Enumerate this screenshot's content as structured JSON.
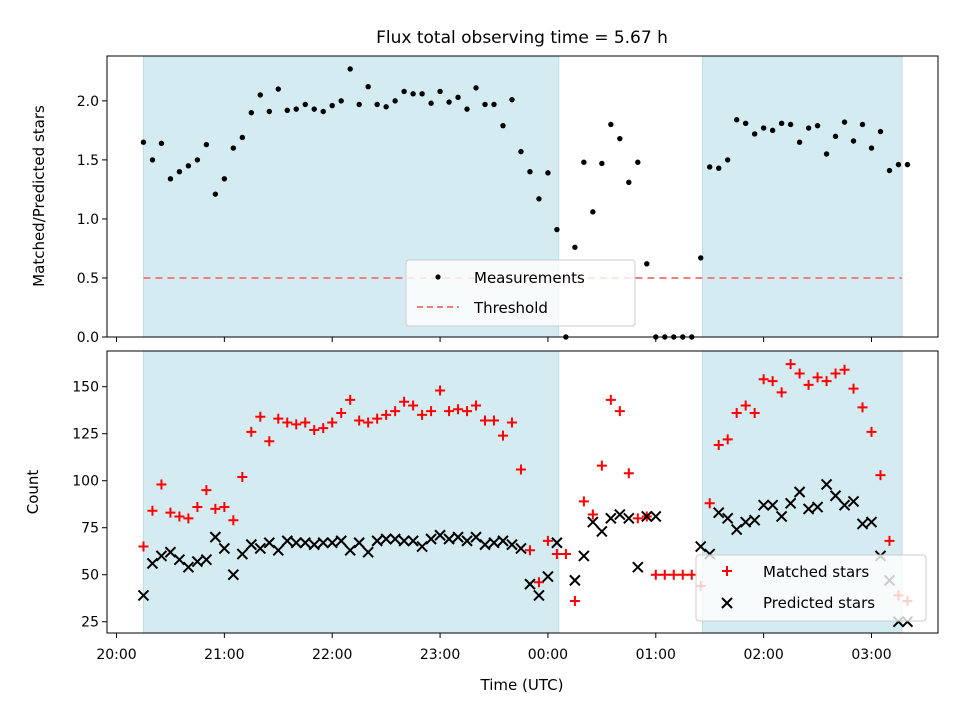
{
  "chart_data": [
    {
      "type": "scatter",
      "title": "Flux total observing time = 5.67 h",
      "xlabel": "",
      "ylabel": "Matched/Predicted stars",
      "ylim": [
        0,
        2.38
      ],
      "yticks": [
        "0.0",
        "0.5",
        "1.0",
        "1.5",
        "2.0"
      ],
      "grid": false,
      "legend": "lower-center",
      "shaded_intervals": [
        [
          "20:15",
          "00:06"
        ],
        [
          "01:26",
          "03:17"
        ]
      ],
      "series": [
        {
          "name": "Measurements",
          "kind": "points",
          "color": "#000000",
          "x": [
            "20:15",
            "20:20",
            "20:25",
            "20:30",
            "20:35",
            "20:40",
            "20:45",
            "20:50",
            "20:55",
            "21:00",
            "21:05",
            "21:10",
            "21:15",
            "21:20",
            "21:25",
            "21:30",
            "21:35",
            "21:40",
            "21:45",
            "21:50",
            "21:55",
            "22:00",
            "22:05",
            "22:10",
            "22:15",
            "22:20",
            "22:25",
            "22:30",
            "22:35",
            "22:40",
            "22:45",
            "22:50",
            "22:55",
            "23:00",
            "23:05",
            "23:10",
            "23:15",
            "23:20",
            "23:25",
            "23:30",
            "23:35",
            "23:40",
            "23:45",
            "23:50",
            "23:55",
            "00:00",
            "00:05",
            "00:10",
            "00:15",
            "00:20",
            "00:25",
            "00:30",
            "00:35",
            "00:40",
            "00:45",
            "00:50",
            "00:55",
            "01:00",
            "01:05",
            "01:10",
            "01:15",
            "01:20",
            "01:25",
            "01:30",
            "01:35",
            "01:40",
            "01:45",
            "01:50",
            "01:55",
            "02:00",
            "02:05",
            "02:10",
            "02:15",
            "02:20",
            "02:25",
            "02:30",
            "02:35",
            "02:40",
            "02:45",
            "02:50",
            "02:55",
            "03:00",
            "03:05",
            "03:10",
            "03:15",
            "03:20"
          ],
          "y": [
            1.65,
            1.5,
            1.64,
            1.34,
            1.4,
            1.45,
            1.5,
            1.63,
            1.21,
            1.34,
            1.6,
            1.69,
            1.9,
            2.05,
            1.91,
            2.1,
            1.92,
            1.93,
            1.97,
            1.93,
            1.91,
            1.96,
            2.0,
            2.27,
            1.97,
            2.12,
            1.97,
            1.95,
            2.0,
            2.08,
            2.06,
            2.06,
            1.98,
            2.08,
            1.99,
            2.03,
            1.93,
            2.11,
            1.97,
            1.97,
            1.79,
            2.01,
            1.57,
            1.4,
            1.17,
            1.39,
            0.91,
            0.0,
            0.76,
            1.48,
            1.06,
            1.47,
            1.8,
            1.68,
            1.31,
            1.48,
            0.62,
            0.0,
            0.0,
            0.0,
            0.0,
            0.0,
            0.67,
            1.44,
            1.43,
            1.5,
            1.84,
            1.81,
            1.72,
            1.77,
            1.75,
            1.81,
            1.8,
            1.65,
            1.77,
            1.79,
            1.55,
            1.7,
            1.82,
            1.66,
            1.8,
            1.6,
            1.74,
            1.41,
            1.46,
            1.46
          ]
        },
        {
          "name": "Threshold",
          "kind": "dashed-line",
          "color": "#f08080",
          "x": [
            "20:15",
            "03:17"
          ],
          "y": [
            0.5,
            0.5
          ]
        }
      ]
    },
    {
      "type": "scatter",
      "title": "",
      "xlabel": "Time (UTC)",
      "ylabel": "Count",
      "ylim": [
        19,
        169
      ],
      "yticks": [
        "25",
        "50",
        "75",
        "100",
        "125",
        "150"
      ],
      "xticks": [
        "20:00",
        "21:00",
        "22:00",
        "23:00",
        "00:00",
        "01:00",
        "02:00",
        "03:00"
      ],
      "grid": false,
      "legend": "lower-right",
      "shaded_intervals": [
        [
          "20:15",
          "00:06"
        ],
        [
          "01:26",
          "03:17"
        ]
      ],
      "series": [
        {
          "name": "Matched stars",
          "kind": "plus",
          "color": "#ff0000",
          "x": [
            "20:15",
            "20:20",
            "20:25",
            "20:30",
            "20:35",
            "20:40",
            "20:45",
            "20:50",
            "20:55",
            "21:00",
            "21:05",
            "21:10",
            "21:15",
            "21:20",
            "21:25",
            "21:30",
            "21:35",
            "21:40",
            "21:45",
            "21:50",
            "21:55",
            "22:00",
            "22:05",
            "22:10",
            "22:15",
            "22:20",
            "22:25",
            "22:30",
            "22:35",
            "22:40",
            "22:45",
            "22:50",
            "22:55",
            "23:00",
            "23:05",
            "23:10",
            "23:15",
            "23:20",
            "23:25",
            "23:30",
            "23:35",
            "23:40",
            "23:45",
            "23:50",
            "23:55",
            "00:00",
            "00:05",
            "00:10",
            "00:15",
            "00:20",
            "00:25",
            "00:30",
            "00:35",
            "00:40",
            "00:45",
            "00:50",
            "00:55",
            "01:00",
            "01:05",
            "01:10",
            "01:15",
            "01:20",
            "01:25",
            "01:30",
            "01:35",
            "01:40",
            "01:45",
            "01:50",
            "01:55",
            "02:00",
            "02:05",
            "02:10",
            "02:15",
            "02:20",
            "02:25",
            "02:30",
            "02:35",
            "02:40",
            "02:45",
            "02:50",
            "02:55",
            "03:00",
            "03:05",
            "03:10",
            "03:15",
            "03:20"
          ],
          "y": [
            65,
            84,
            98,
            83,
            81,
            80,
            86,
            95,
            85,
            86,
            79,
            102,
            126,
            134,
            121,
            133,
            131,
            130,
            131,
            127,
            128,
            131,
            136,
            143,
            132,
            131,
            133,
            135,
            137,
            142,
            140,
            135,
            137,
            148,
            137,
            138,
            137,
            140,
            132,
            132,
            124,
            131,
            106,
            63,
            46,
            68,
            61,
            61,
            36,
            89,
            82,
            108,
            143,
            137,
            104,
            80,
            81,
            50,
            50,
            50,
            50,
            50,
            44,
            88,
            119,
            122,
            136,
            140,
            136,
            154,
            153,
            147,
            162,
            157,
            151,
            155,
            153,
            157,
            159,
            149,
            139,
            126,
            103,
            68,
            39,
            36
          ]
        },
        {
          "name": "Predicted stars",
          "kind": "x",
          "color": "#000000",
          "x": [
            "20:15",
            "20:20",
            "20:25",
            "20:30",
            "20:35",
            "20:40",
            "20:45",
            "20:50",
            "20:55",
            "21:00",
            "21:05",
            "21:10",
            "21:15",
            "21:20",
            "21:25",
            "21:30",
            "21:35",
            "21:40",
            "21:45",
            "21:50",
            "21:55",
            "22:00",
            "22:05",
            "22:10",
            "22:15",
            "22:20",
            "22:25",
            "22:30",
            "22:35",
            "22:40",
            "22:45",
            "22:50",
            "22:55",
            "23:00",
            "23:05",
            "23:10",
            "23:15",
            "23:20",
            "23:25",
            "23:30",
            "23:35",
            "23:40",
            "23:45",
            "23:50",
            "23:55",
            "00:00",
            "00:05",
            "00:10",
            "00:15",
            "00:20",
            "00:25",
            "00:30",
            "00:35",
            "00:40",
            "00:45",
            "00:50",
            "00:55",
            "01:00",
            "01:25",
            "01:30",
            "01:35",
            "01:40",
            "01:45",
            "01:50",
            "01:55",
            "02:00",
            "02:05",
            "02:10",
            "02:15",
            "02:20",
            "02:25",
            "02:30",
            "02:35",
            "02:40",
            "02:45",
            "02:50",
            "02:55",
            "03:00",
            "03:05",
            "03:10",
            "03:15",
            "03:20"
          ],
          "y": [
            39,
            56,
            60,
            62,
            58,
            54,
            57,
            58,
            70,
            64,
            50,
            61,
            66,
            64,
            67,
            63,
            68,
            67,
            67,
            66,
            67,
            67,
            68,
            63,
            67,
            62,
            68,
            69,
            69,
            68,
            68,
            65,
            69,
            71,
            69,
            70,
            68,
            70,
            66,
            67,
            68,
            66,
            64,
            45,
            39,
            49,
            67,
            null,
            47,
            60,
            78,
            73,
            80,
            82,
            80,
            54,
            81,
            81,
            65,
            61,
            83,
            80,
            74,
            78,
            79,
            87,
            87,
            81,
            88,
            94,
            85,
            86,
            98,
            92,
            87,
            89,
            77,
            78,
            60,
            47,
            25,
            25
          ]
        }
      ]
    }
  ]
}
